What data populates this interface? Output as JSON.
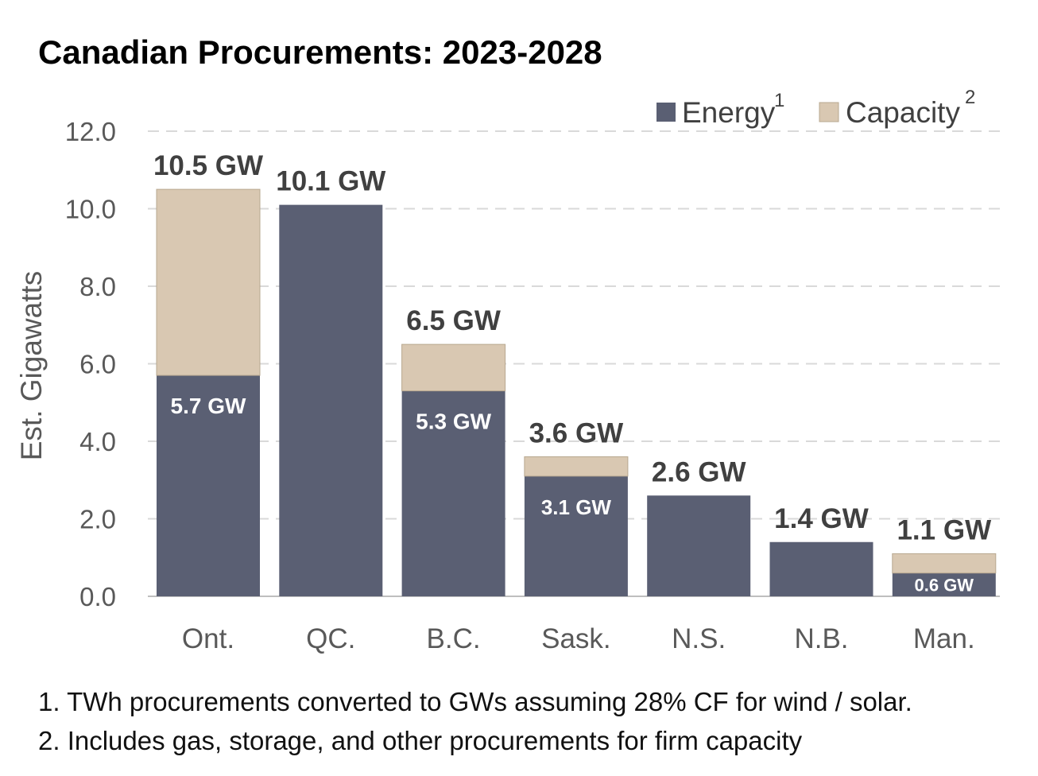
{
  "chart_data": {
    "type": "bar",
    "stacked": true,
    "title": "Canadian Procurements: 2023-2028",
    "ylabel": "Est. Gigawatts",
    "ylim": [
      0,
      12
    ],
    "yticks": [
      "0.0",
      "2.0",
      "4.0",
      "6.0",
      "8.0",
      "10.0",
      "12.0"
    ],
    "grid": "horizontal dashed",
    "legend_position": "top-right",
    "categories": [
      "Ont.",
      "QC.",
      "B.C.",
      "Sask.",
      "N.S.",
      "N.B.",
      "Man."
    ],
    "series": [
      {
        "name": "Energy",
        "name_sup": "1",
        "color": "#5a5f73",
        "values": [
          5.7,
          10.1,
          5.3,
          3.1,
          2.6,
          1.4,
          0.6
        ]
      },
      {
        "name": "Capacity",
        "name_sup": "2",
        "color": "#d9c8b2",
        "values": [
          4.8,
          0,
          1.2,
          0.5,
          0,
          0,
          0.5
        ]
      }
    ],
    "total_labels": [
      "10.5 GW",
      "10.1 GW",
      "6.5 GW",
      "3.6 GW",
      "2.6 GW",
      "1.4 GW",
      "1.1 GW"
    ],
    "energy_labels": [
      "5.7 GW",
      "",
      "5.3 GW",
      "3.1 GW",
      "",
      "",
      "0.6 GW"
    ]
  },
  "notes": [
    "1. TWh procurements converted to GWs assuming 28% CF for wind / solar.",
    "2. Includes gas, storage, and other procurements for firm capacity"
  ]
}
